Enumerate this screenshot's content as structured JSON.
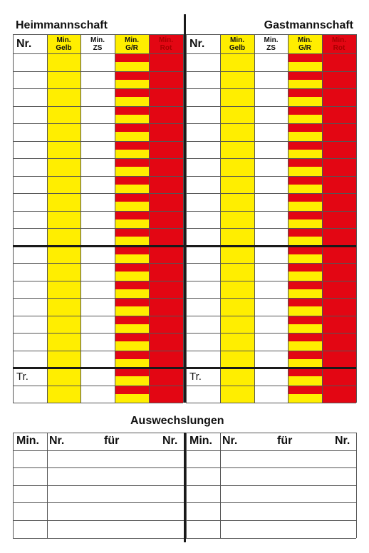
{
  "home": {
    "title": "Heimmannschaft",
    "nr": "Nr.",
    "col_yellow": [
      "Min.",
      "Gelb"
    ],
    "col_zs": [
      "Min.",
      "ZS"
    ],
    "col_gr": [
      "Min.",
      "G/R"
    ],
    "col_red": [
      "Min.",
      "Rot"
    ],
    "trainer": "Tr."
  },
  "away": {
    "title": "Gastmannschaft",
    "nr": "Nr.",
    "col_yellow": [
      "Min.",
      "Gelb"
    ],
    "col_zs": [
      "Min.",
      "ZS"
    ],
    "col_gr": [
      "Min.",
      "G/R"
    ],
    "col_red": [
      "Min.",
      "Rot"
    ],
    "trainer": "Tr."
  },
  "subs": {
    "title": "Auswechslungen",
    "left": {
      "min": "Min.",
      "nr1": "Nr.",
      "fuer": "für",
      "nr2": "Nr."
    },
    "right": {
      "min": "Min.",
      "nr1": "Nr.",
      "fuer": "für",
      "nr2": "Nr."
    }
  },
  "colors": {
    "yellow": "#ffee00",
    "red": "#e30613",
    "line": "#1a1a1a"
  }
}
